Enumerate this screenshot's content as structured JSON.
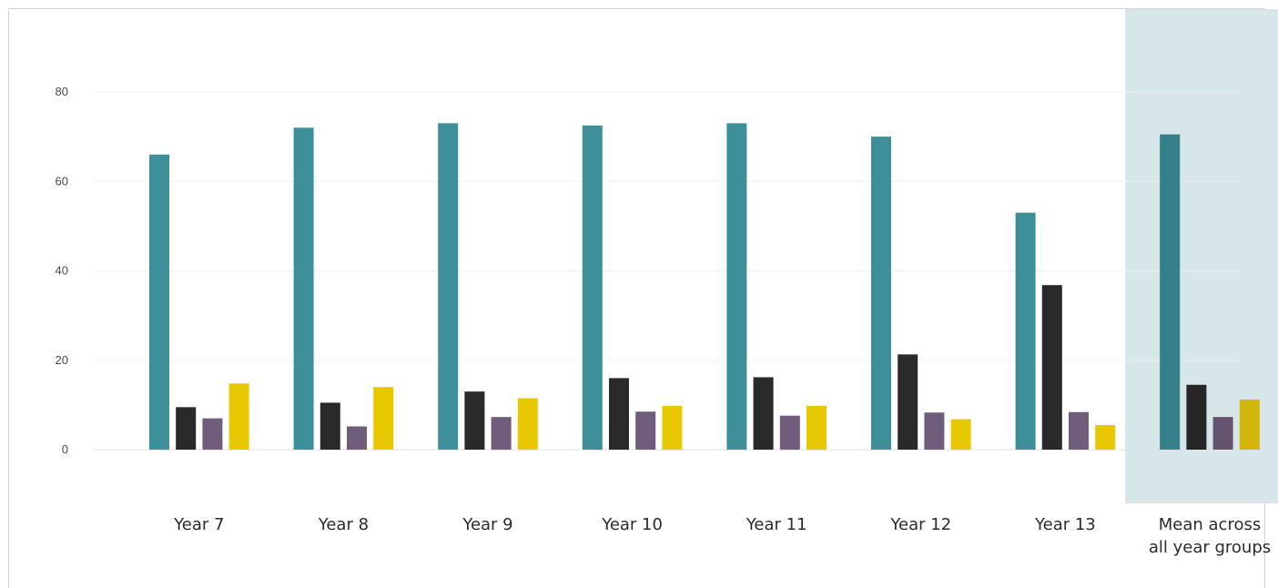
{
  "chart_data": {
    "type": "bar",
    "categories": [
      "Year 7",
      "Year 8",
      "Year 9",
      "Year 10",
      "Year 11",
      "Year 12",
      "Year 13",
      "Mean across all year groups"
    ],
    "category_lines": [
      [
        "Year 7"
      ],
      [
        "Year 8"
      ],
      [
        "Year 9"
      ],
      [
        "Year 10"
      ],
      [
        "Year 11"
      ],
      [
        "Year 12"
      ],
      [
        "Year 13"
      ],
      [
        "Mean across",
        "all year groups"
      ]
    ],
    "series": [
      {
        "values": [
          66,
          72,
          73,
          72.5,
          73,
          70,
          53,
          70.5
        ],
        "color": "#3d8f99",
        "highlight_color": "#35808a"
      },
      {
        "values": [
          9.5,
          10.5,
          13,
          16,
          16.2,
          21.3,
          36.8,
          14.5
        ],
        "color": "#2a2a2a",
        "highlight_color": "#262626"
      },
      {
        "values": [
          7,
          5.2,
          7.3,
          8.5,
          7.6,
          8.3,
          8.4,
          7.3
        ],
        "color": "#6f5d7b",
        "highlight_color": "#64546f"
      },
      {
        "values": [
          14.8,
          14,
          11.5,
          9.8,
          9.8,
          6.8,
          5.5,
          11.2
        ],
        "color": "#e8c800",
        "highlight_color": "#d2b70a"
      }
    ],
    "yticks": [
      0,
      20,
      40,
      60,
      80
    ],
    "ylim": [
      0,
      80
    ],
    "grid": true,
    "highlight_category": "Mean across all year groups",
    "highlight_color": "#d7e6e9",
    "title": "",
    "xlabel": "",
    "ylabel": ""
  }
}
